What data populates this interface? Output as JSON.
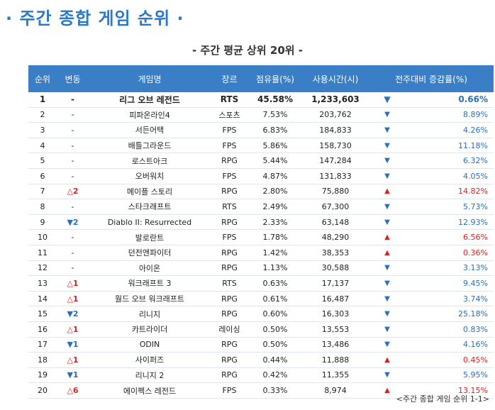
{
  "title": "· 주간 종합 게임 순위 ·",
  "subtitle": "- 주간 평균 상위 20위 -",
  "caption": "<주간 종합 게임 순위 1-1>",
  "colors": {
    "header_bg": "#3a7ec6",
    "title": "#2c78c4",
    "up": "#e02020",
    "down": "#2a6fc0"
  },
  "headers": [
    "순위",
    "변동",
    "게임명",
    "장르",
    "점유율(%)",
    "사용시간(시)",
    "전주대비 증감률(%)"
  ],
  "rows": [
    {
      "rank": "1",
      "change": "-",
      "change_dir": "none",
      "name": "리그 오브 레전드",
      "genre": "RTS",
      "share": "45.58%",
      "hours": "1,233,603",
      "trend": "down",
      "rate": "0.66%"
    },
    {
      "rank": "2",
      "change": "-",
      "change_dir": "none",
      "name": "피파온라인4",
      "genre": "스포츠",
      "share": "7.53%",
      "hours": "203,762",
      "trend": "down",
      "rate": "8.89%"
    },
    {
      "rank": "3",
      "change": "-",
      "change_dir": "none",
      "name": "서든어택",
      "genre": "FPS",
      "share": "6.83%",
      "hours": "184,833",
      "trend": "down",
      "rate": "4.26%"
    },
    {
      "rank": "4",
      "change": "-",
      "change_dir": "none",
      "name": "배틀그라운드",
      "genre": "FPS",
      "share": "5.86%",
      "hours": "158,730",
      "trend": "down",
      "rate": "11.18%"
    },
    {
      "rank": "5",
      "change": "-",
      "change_dir": "none",
      "name": "로스트아크",
      "genre": "RPG",
      "share": "5.44%",
      "hours": "147,284",
      "trend": "down",
      "rate": "6.32%"
    },
    {
      "rank": "6",
      "change": "-",
      "change_dir": "none",
      "name": "오버워치",
      "genre": "FPS",
      "share": "4.87%",
      "hours": "131,833",
      "trend": "down",
      "rate": "4.05%"
    },
    {
      "rank": "7",
      "change": "△2",
      "change_dir": "up",
      "name": "메이플 스토리",
      "genre": "RPG",
      "share": "2.80%",
      "hours": "75,880",
      "trend": "up",
      "rate": "14.82%"
    },
    {
      "rank": "8",
      "change": "-",
      "change_dir": "none",
      "name": "스타크래프트",
      "genre": "RTS",
      "share": "2.49%",
      "hours": "67,300",
      "trend": "down",
      "rate": "5.73%"
    },
    {
      "rank": "9",
      "change": "▼2",
      "change_dir": "down",
      "name": "Diablo II: Resurrected",
      "genre": "RPG",
      "share": "2.33%",
      "hours": "63,148",
      "trend": "down",
      "rate": "12.93%"
    },
    {
      "rank": "10",
      "change": "-",
      "change_dir": "none",
      "name": "발로란트",
      "genre": "FPS",
      "share": "1.78%",
      "hours": "48,290",
      "trend": "up",
      "rate": "6.56%"
    },
    {
      "rank": "11",
      "change": "-",
      "change_dir": "none",
      "name": "던전앤파이터",
      "genre": "RPG",
      "share": "1.42%",
      "hours": "38,353",
      "trend": "up",
      "rate": "0.36%"
    },
    {
      "rank": "12",
      "change": "-",
      "change_dir": "none",
      "name": "아이온",
      "genre": "RPG",
      "share": "1.13%",
      "hours": "30,588",
      "trend": "down",
      "rate": "3.13%"
    },
    {
      "rank": "13",
      "change": "△1",
      "change_dir": "up",
      "name": "워크래프트 3",
      "genre": "RTS",
      "share": "0.63%",
      "hours": "17,137",
      "trend": "down",
      "rate": "9.45%"
    },
    {
      "rank": "14",
      "change": "△1",
      "change_dir": "up",
      "name": "월드 오브 워크래프트",
      "genre": "RPG",
      "share": "0.61%",
      "hours": "16,487",
      "trend": "down",
      "rate": "3.74%"
    },
    {
      "rank": "15",
      "change": "▼2",
      "change_dir": "down",
      "name": "리니지",
      "genre": "RPG",
      "share": "0.60%",
      "hours": "16,303",
      "trend": "down",
      "rate": "25.18%"
    },
    {
      "rank": "16",
      "change": "△1",
      "change_dir": "up",
      "name": "카트라이더",
      "genre": "레이싱",
      "share": "0.50%",
      "hours": "13,553",
      "trend": "down",
      "rate": "0.83%"
    },
    {
      "rank": "17",
      "change": "▼1",
      "change_dir": "down",
      "name": "ODIN",
      "genre": "RPG",
      "share": "0.50%",
      "hours": "13,486",
      "trend": "down",
      "rate": "4.16%"
    },
    {
      "rank": "18",
      "change": "△1",
      "change_dir": "up",
      "name": "사이퍼즈",
      "genre": "RPG",
      "share": "0.44%",
      "hours": "11,888",
      "trend": "up",
      "rate": "0.45%"
    },
    {
      "rank": "19",
      "change": "▼1",
      "change_dir": "down",
      "name": "리니지 2",
      "genre": "RPG",
      "share": "0.42%",
      "hours": "11,355",
      "trend": "down",
      "rate": "5.95%"
    },
    {
      "rank": "20",
      "change": "△6",
      "change_dir": "up",
      "name": "에이펙스 레전드",
      "genre": "FPS",
      "share": "0.33%",
      "hours": "8,974",
      "trend": "up",
      "rate": "13.15%"
    }
  ]
}
